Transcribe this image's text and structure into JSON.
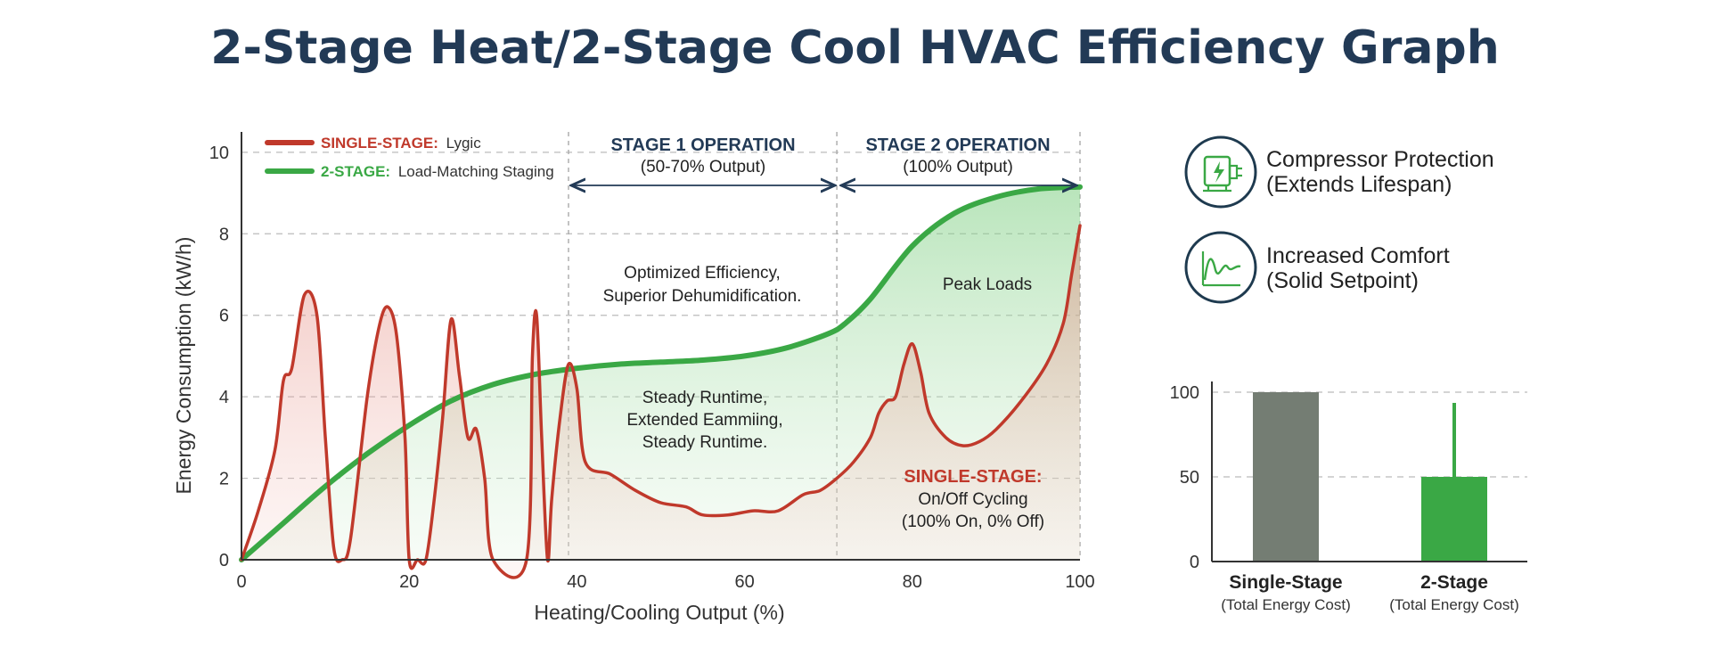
{
  "title": "2-Stage Heat/2-Stage Cool HVAC Efficiency Graph",
  "chart_data": [
    {
      "type": "line",
      "xlabel": "Heating/Cooling Output (%)",
      "ylabel": "Energy Consumption (kW/h)",
      "xlim": [
        0,
        100
      ],
      "ylim": [
        0,
        10.5
      ],
      "x_ticks": [
        "0",
        "20",
        "40",
        "60",
        "80",
        "100"
      ],
      "y_ticks": [
        "0",
        "2",
        "4",
        "6",
        "8",
        "10"
      ],
      "grid": "horizontal dashed",
      "legend_position": "top-left",
      "legend": [
        {
          "prefix": "SINGLE-STAGE:",
          "text": "Lygic",
          "color": "#c0392b"
        },
        {
          "prefix": "2-STAGE:",
          "text": "Load-Matching Staging",
          "color": "#3aa845"
        }
      ],
      "series": [
        {
          "name": "SINGLE-STAGE",
          "color": "#c0392b",
          "x": [
            0,
            2,
            4,
            5,
            6,
            7.5,
            9,
            10,
            11,
            12,
            13,
            15,
            16.5,
            17.5,
            18.5,
            19.5,
            20,
            21,
            22,
            23,
            24,
            25,
            26,
            27,
            28,
            29,
            30,
            34,
            34.7,
            35.2,
            35.8,
            36.5,
            37,
            38,
            39,
            40,
            41,
            44,
            47,
            50,
            53,
            55,
            58,
            61,
            64,
            67,
            69,
            71,
            73,
            75,
            76,
            77,
            78,
            79,
            80,
            81,
            82,
            84,
            86,
            88,
            90,
            93,
            96,
            98,
            99,
            100
          ],
          "y": [
            0,
            1.2,
            2.7,
            4.4,
            4.7,
            6.5,
            6.0,
            3.0,
            0.3,
            0.0,
            0.5,
            4.0,
            5.8,
            6.2,
            5.5,
            3.0,
            0.0,
            0.0,
            0.0,
            1.5,
            3.5,
            5.9,
            4.5,
            3.0,
            3.2,
            2.0,
            0.0,
            0.0,
            5.0,
            6.0,
            3.0,
            0.0,
            1.5,
            3.5,
            4.8,
            4.2,
            2.4,
            2.1,
            1.7,
            1.4,
            1.3,
            1.1,
            1.1,
            1.2,
            1.2,
            1.6,
            1.7,
            2.0,
            2.4,
            3.0,
            3.6,
            3.9,
            4.0,
            4.8,
            5.3,
            4.6,
            3.6,
            3.0,
            2.8,
            2.9,
            3.2,
            3.9,
            4.8,
            5.8,
            7.0,
            8.2
          ]
        },
        {
          "name": "2-STAGE",
          "color": "#3aa845",
          "x": [
            0,
            5,
            10,
            15,
            20,
            25,
            30,
            35,
            40,
            45,
            50,
            55,
            60,
            65,
            70,
            72,
            75,
            80,
            85,
            90,
            95,
            100
          ],
          "y": [
            0,
            0.9,
            1.8,
            2.6,
            3.3,
            3.9,
            4.3,
            4.55,
            4.7,
            4.8,
            4.85,
            4.9,
            5.0,
            5.2,
            5.55,
            5.8,
            6.4,
            7.7,
            8.5,
            8.9,
            9.1,
            9.15
          ]
        }
      ],
      "regions": [
        {
          "title": "STAGE 1 OPERATION",
          "subtitle": "(50-70% Output)",
          "from": 39,
          "to": 71
        },
        {
          "title": "STAGE 2 OPERATION",
          "subtitle": "(100% Output)",
          "from": 71,
          "to": 100
        }
      ],
      "annotations": {
        "optimized_1": "Optimized Efficiency,",
        "optimized_2": "Superior Dehumidification.",
        "peak": "Peak Loads",
        "steady_1": "Steady Runtime,",
        "steady_2": "Extended Eammiing,",
        "steady_3": "Steady Runtime.",
        "single_title": "SINGLE-STAGE:",
        "single_1": "On/Off Cycling",
        "single_2": "(100% On, 0% Off)"
      }
    },
    {
      "type": "bar",
      "categories": [
        "Single-Stage",
        "2-Stage"
      ],
      "category_subtitles": [
        "(Total Energy Cost)",
        "(Total Energy Cost)"
      ],
      "values": [
        100,
        50
      ],
      "colors": [
        "#747d73",
        "#3aa845"
      ],
      "ylim": [
        0,
        100
      ],
      "y_ticks": [
        "0",
        "50",
        "100"
      ],
      "grid": "horizontal dashed"
    }
  ],
  "features": [
    {
      "icon": "compressor-icon",
      "line1": "Compressor Protection",
      "line2": "(Extends Lifespan)"
    },
    {
      "icon": "comfort-wave-icon",
      "line1": "Increased Comfort",
      "line2": "(Solid Setpoint)"
    }
  ]
}
